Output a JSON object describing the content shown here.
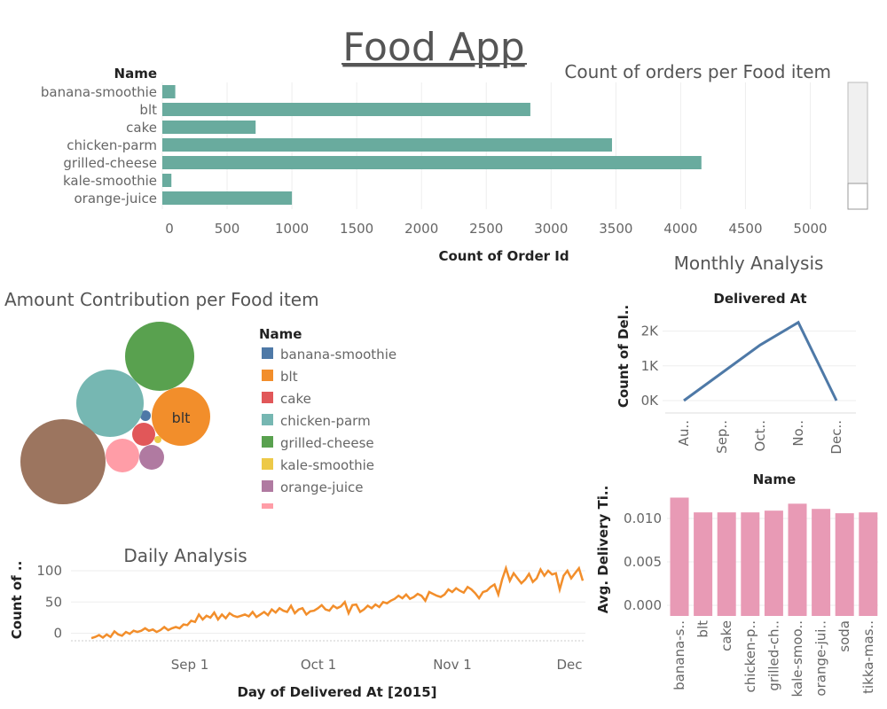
{
  "app_title": "Food App",
  "colors": {
    "bar_teal": "#69ab9e",
    "line_blue": "#4e79a7",
    "line_orange": "#f28e2b",
    "pink_bar": "#e89ab5",
    "grid": "#eeeeee"
  },
  "bar_panel": {
    "title": "Count of orders per Food item",
    "row_header": "Name",
    "xlabel": "Count of Order Id",
    "x_ticks": [
      "0",
      "500",
      "1000",
      "1500",
      "2000",
      "2500",
      "3000",
      "3500",
      "4000",
      "4500",
      "5000"
    ]
  },
  "bubble_panel": {
    "title": "Amount Contribution per Food item",
    "legend_title": "Name",
    "bubble_label": "blt",
    "legend": [
      {
        "name": "banana-smoothie",
        "color": "#4e79a7"
      },
      {
        "name": "blt",
        "color": "#f28e2b"
      },
      {
        "name": "cake",
        "color": "#e15759"
      },
      {
        "name": "chicken-parm",
        "color": "#76b7b2"
      },
      {
        "name": "grilled-cheese",
        "color": "#59a14f"
      },
      {
        "name": "kale-smoothie",
        "color": "#edc948"
      },
      {
        "name": "orange-juice",
        "color": "#b07aa1"
      },
      {
        "name": "",
        "color": "#ff9da7"
      }
    ]
  },
  "monthly_panel": {
    "section_title": "Monthly Analysis",
    "chart_title": "Delivered At",
    "ylabel": "Count of Del..",
    "y_ticks": [
      "2K",
      "1K",
      "0K"
    ],
    "x_ticks": [
      "Au..",
      "Sep..",
      "Oct..",
      "No..",
      "Dec.."
    ]
  },
  "delivery_panel": {
    "chart_title": "Name",
    "ylabel": "Avg. Delivery Ti..",
    "y_ticks": [
      "0.010",
      "0.005",
      "0.000"
    ],
    "x_ticks": [
      "banana-s..",
      "blt",
      "cake",
      "chicken-p..",
      "grilled-ch..",
      "kale-smoo..",
      "orange-jui..",
      "soda",
      "tikka-mas.."
    ]
  },
  "daily_panel": {
    "title": "Daily Analysis",
    "ylabel": "Count of ..",
    "xlabel": "Day of Delivered At [2015]",
    "y_ticks": [
      "100",
      "50",
      "0"
    ],
    "x_ticks": [
      "Sep 1",
      "Oct 1",
      "Nov 1",
      "Dec"
    ]
  },
  "chart_data": [
    {
      "type": "bar",
      "title": "Count of orders per Food item",
      "categories": [
        "banana-smoothie",
        "blt",
        "cake",
        "chicken-parm",
        "grilled-cheese",
        "kale-smoothie",
        "orange-juice"
      ],
      "values": [
        100,
        2840,
        720,
        3470,
        4160,
        70,
        1000
      ],
      "xlabel": "Count of Order Id",
      "ylabel": "Name",
      "xlim": [
        0,
        5300
      ]
    },
    {
      "type": "scatter",
      "subtype": "bubble",
      "title": "Amount Contribution per Food item",
      "series": [
        {
          "name": "banana-smoothie",
          "size": 6
        },
        {
          "name": "blt",
          "size": 33
        },
        {
          "name": "cake",
          "size": 13
        },
        {
          "name": "chicken-parm",
          "size": 38
        },
        {
          "name": "grilled-cheese",
          "size": 39
        },
        {
          "name": "kale-smoothie",
          "size": 4
        },
        {
          "name": "orange-juice",
          "size": 14
        },
        {
          "name": "",
          "size": 19
        },
        {
          "name": "",
          "size": 48
        }
      ]
    },
    {
      "type": "line",
      "title": "Delivered At",
      "categories": [
        "Au..",
        "Sep..",
        "Oct..",
        "No..",
        "Dec.."
      ],
      "values": [
        0,
        800,
        1600,
        2250,
        0
      ],
      "ylabel": "Count of Del..",
      "ylim": [
        0,
        2500
      ]
    },
    {
      "type": "bar",
      "title": "Name",
      "categories": [
        "banana-s..",
        "blt",
        "cake",
        "chicken-p..",
        "grilled-ch..",
        "kale-smoo..",
        "orange-jui..",
        "soda",
        "tikka-mas.."
      ],
      "values": [
        0.0124,
        0.0107,
        0.0107,
        0.0107,
        0.0109,
        0.0117,
        0.0111,
        0.0106,
        0.0107
      ],
      "ylabel": "Avg. Delivery Ti..",
      "ylim": [
        -0.002,
        0.014
      ]
    },
    {
      "type": "line",
      "title": "Daily Analysis",
      "xlabel": "Day of Delivered At [2015]",
      "ylabel": "Count of ..",
      "x_ticks": [
        "Sep 1",
        "Oct 1",
        "Nov 1",
        "Dec"
      ],
      "ylim": [
        -15,
        120
      ],
      "values": [
        -8,
        -6,
        -3,
        -7,
        -2,
        -6,
        3,
        -2,
        -4,
        2,
        -1,
        4,
        2,
        4,
        8,
        4,
        6,
        2,
        5,
        10,
        5,
        8,
        10,
        8,
        14,
        13,
        20,
        18,
        30,
        22,
        28,
        25,
        33,
        22,
        30,
        24,
        32,
        28,
        26,
        28,
        30,
        27,
        34,
        26,
        30,
        34,
        29,
        38,
        33,
        40,
        36,
        34,
        44,
        32,
        38,
        40,
        30,
        35,
        36,
        40,
        45,
        38,
        36,
        44,
        40,
        43,
        50,
        32,
        45,
        46,
        34,
        38,
        44,
        40,
        46,
        42,
        50,
        48,
        52,
        55,
        60,
        56,
        62,
        55,
        58,
        63,
        60,
        52,
        66,
        63,
        60,
        58,
        62,
        70,
        66,
        72,
        68,
        65,
        74,
        70,
        64,
        56,
        66,
        68,
        74,
        78,
        62,
        86,
        104,
        84,
        96,
        88,
        80,
        86,
        95,
        82,
        88,
        102,
        92,
        100,
        94,
        96,
        70,
        92,
        100,
        88,
        96,
        104,
        84
      ]
    }
  ]
}
